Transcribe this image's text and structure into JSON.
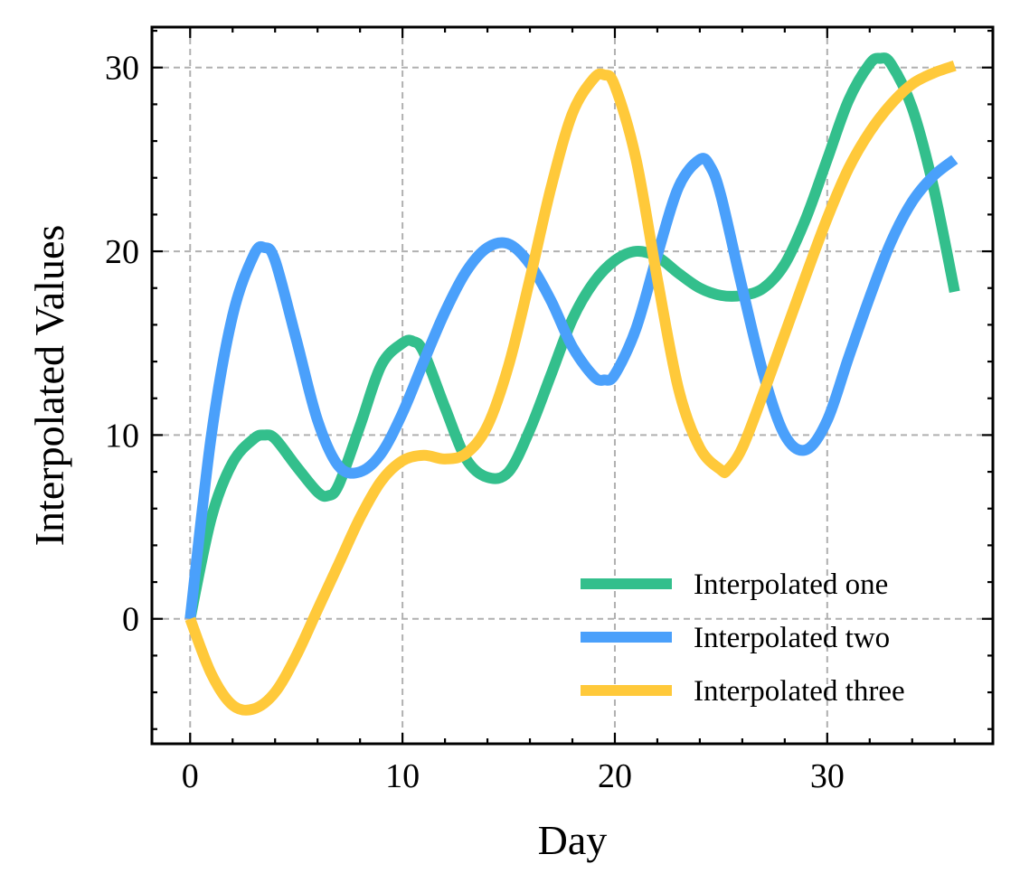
{
  "chart_data": {
    "type": "line",
    "title": "",
    "xlabel": "Day",
    "ylabel": "Interpolated Values",
    "xlim": [
      -1.8,
      37.8
    ],
    "ylim": [
      -6.8,
      32.2
    ],
    "xticks": [
      0,
      10,
      20,
      30
    ],
    "yticks": [
      0,
      10,
      20,
      30
    ],
    "xtick_labels": [
      "0",
      "10",
      "20",
      "30"
    ],
    "ytick_labels": [
      "0",
      "10",
      "20",
      "30"
    ],
    "grid": true,
    "legend_position": "lower-right",
    "series": [
      {
        "name": "Interpolated one",
        "color": "#33bf8c",
        "x": [
          0,
          1,
          2,
          3,
          3.5,
          4,
          5,
          6,
          6.5,
          7,
          8,
          9,
          10,
          10.5,
          11,
          12,
          13,
          14,
          15,
          16,
          17,
          18,
          19,
          20,
          21,
          22,
          23,
          24,
          25,
          26,
          27,
          28,
          29,
          30,
          31,
          32,
          32.5,
          33,
          34,
          35,
          36
        ],
        "y": [
          0,
          5.5,
          8.5,
          9.8,
          10,
          9.8,
          8.3,
          6.9,
          6.7,
          7.3,
          10.5,
          13.8,
          15,
          15.1,
          14.5,
          11.5,
          8.7,
          7.7,
          8,
          10.3,
          13.3,
          16.3,
          18.3,
          19.5,
          20,
          19.7,
          18.8,
          18,
          17.6,
          17.6,
          18,
          19.3,
          21.8,
          25,
          28.2,
          30.2,
          30.5,
          30.2,
          27.8,
          23.5,
          17.8
        ]
      },
      {
        "name": "Interpolated two",
        "color": "#4aa0fb",
        "x": [
          0,
          1,
          2,
          3,
          3.5,
          4,
          5,
          6,
          7,
          8,
          9,
          10,
          11,
          12,
          13,
          14,
          15,
          16,
          17,
          18,
          19,
          19.5,
          20,
          21,
          22,
          23,
          24,
          24.5,
          25,
          26,
          27,
          28,
          29,
          30,
          31,
          32,
          33,
          34,
          35,
          36
        ],
        "y": [
          0,
          10,
          16.5,
          19.8,
          20.2,
          19.5,
          15.2,
          10.8,
          8.3,
          8,
          9,
          11.2,
          14,
          16.7,
          18.9,
          20.2,
          20.4,
          19.3,
          17.3,
          14.8,
          13.2,
          13,
          13.3,
          15.8,
          19.8,
          23.5,
          25,
          24.6,
          23,
          18,
          13.3,
          10,
          9.2,
          10.8,
          14.2,
          17.5,
          20.5,
          22.7,
          24.1,
          25
        ]
      },
      {
        "name": "Interpolated three",
        "color": "#ffc93a",
        "x": [
          0,
          1,
          2,
          3,
          4,
          5,
          6,
          7,
          8,
          9,
          10,
          11,
          12,
          13,
          14,
          15,
          16,
          17,
          18,
          19,
          19.5,
          20,
          21,
          22,
          23,
          24,
          25,
          25.3,
          26,
          27,
          28,
          29,
          30,
          31,
          32,
          33,
          34,
          35,
          36
        ],
        "y": [
          0,
          -3,
          -4.7,
          -4.9,
          -4,
          -2,
          0.5,
          3,
          5.5,
          7.5,
          8.6,
          8.9,
          8.7,
          9,
          10.5,
          13.8,
          18.5,
          23.5,
          27.5,
          29.4,
          29.6,
          29,
          25,
          18.5,
          12.5,
          9.3,
          8.1,
          8.1,
          9.3,
          12.3,
          15.5,
          18.7,
          21.8,
          24.5,
          26.5,
          28,
          29.1,
          29.7,
          30.1
        ]
      }
    ]
  }
}
